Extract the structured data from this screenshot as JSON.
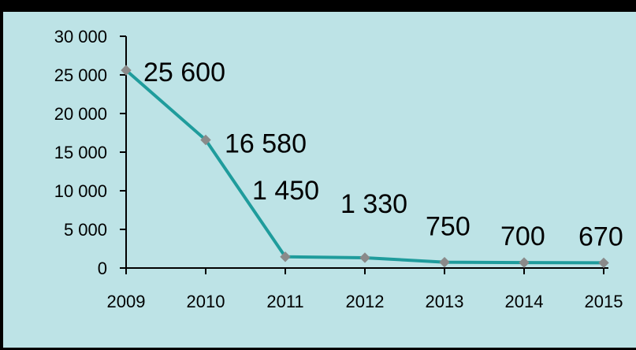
{
  "colors": {
    "background": "#bde3e6",
    "line": "#1f9c9c",
    "marker": "#8a8a8a",
    "axis": "#000000"
  },
  "chart_data": {
    "type": "line",
    "x": [
      "2009",
      "2010",
      "2011",
      "2012",
      "2013",
      "2014",
      "2015"
    ],
    "series": [
      {
        "values": [
          25600,
          16580,
          1450,
          1330,
          750,
          700,
          670
        ]
      }
    ],
    "data_labels": [
      "25 600",
      "16 580",
      "1 450",
      "1 330",
      "750",
      "700",
      "670"
    ],
    "y_ticks": [
      0,
      5000,
      10000,
      15000,
      20000,
      25000,
      30000
    ],
    "y_tick_labels": [
      "0",
      "5 000",
      "10 000",
      "15 000",
      "20 000",
      "25 000",
      "30 000"
    ],
    "ylim": [
      0,
      30000
    ],
    "grid": false,
    "legend": "none",
    "marker": "diamond"
  }
}
